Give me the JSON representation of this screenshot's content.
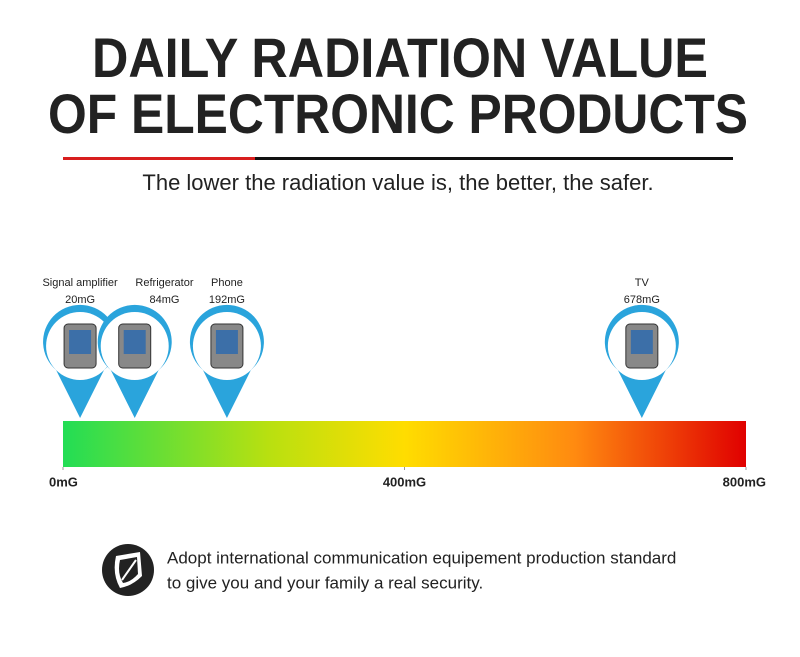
{
  "chart_data": {
    "type": "marker-scale",
    "title": [
      "DAILY RADIATION VALUE",
      "OF ELECTRONIC PRODUCTS"
    ],
    "subtitle": "The lower the radiation value is, the better, the safer.",
    "categories": [
      "Signal amplifier",
      "Refrigerator",
      "Phone",
      "TV"
    ],
    "values": [
      20,
      84,
      192,
      678
    ],
    "value_labels": [
      "20mG",
      "84mG",
      "192mG",
      "678mG"
    ],
    "color": "#2aa4dc",
    "xlim": [
      0,
      800
    ],
    "xticks": [
      {
        "value": 0,
        "label": "0mG"
      },
      {
        "value": 400,
        "label": "400mG"
      },
      {
        "value": 800,
        "label": "800mG"
      }
    ],
    "note": [
      "Adopt international communication equipement production standard",
      "to give you and your family a real security."
    ]
  }
}
